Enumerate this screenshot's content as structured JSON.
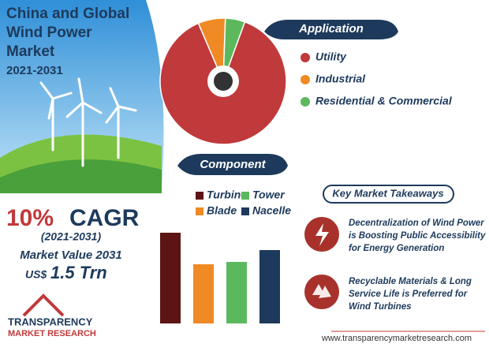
{
  "header": {
    "title_lines": [
      "China and Global",
      "Wind Power",
      "Market"
    ],
    "years": "2021-2031"
  },
  "chart_data": [
    {
      "type": "pie",
      "title": "Application",
      "categories": [
        "Utility",
        "Industrial",
        "Residential & Commercial"
      ],
      "values": [
        88,
        7,
        5
      ],
      "colors": [
        "#c0393b",
        "#f08a24",
        "#5cb85c"
      ]
    },
    {
      "type": "bar",
      "title": "Component",
      "categories": [
        "Turbine",
        "Blade",
        "Tower",
        "Nacelle"
      ],
      "values": [
        115,
        75,
        78,
        93
      ],
      "colors": [
        "#5c1414",
        "#f08a24",
        "#5cb85c",
        "#1d3a5c"
      ]
    }
  ],
  "highlights": {
    "cagr_value": "10%",
    "cagr_label": "CAGR",
    "period": "(2021-2031)",
    "market_value_label": "Market Value 2031",
    "currency": "US$",
    "market_value": "1.5 Trn"
  },
  "takeaways": {
    "title": "Key Market Takeaways",
    "items": [
      {
        "lines": [
          "Decentralization of Wind Power",
          "is Boosting Public Accessibility",
          "for Energy Generation"
        ]
      },
      {
        "lines": [
          "Recyclable Materials & Long",
          "Service Life is Preferred for",
          "Wind Turbines"
        ]
      }
    ]
  },
  "logo": {
    "line1": "TRANSPARENCY",
    "line2": "MARKET RESEARCH"
  },
  "footer": {
    "url": "www.transparencymarketresearch.com"
  }
}
